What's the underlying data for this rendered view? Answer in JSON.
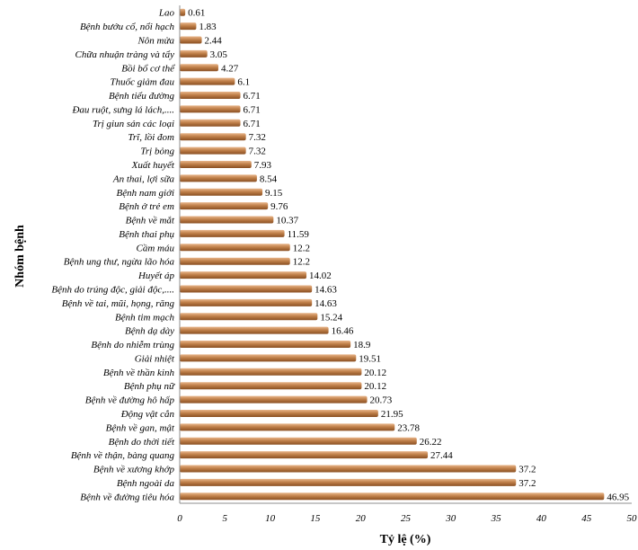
{
  "chart_data": {
    "type": "bar",
    "orientation": "horizontal",
    "xlabel": "Tỷ lệ (%)",
    "ylabel": "Nhóm bệnh",
    "xlim": [
      0,
      50
    ],
    "xticks": [
      "0",
      "5",
      "10",
      "15",
      "20",
      "25",
      "30",
      "35",
      "40",
      "45",
      "50"
    ],
    "grid": false,
    "bar_color": "#c0804a",
    "categories": [
      "Lao",
      "Bệnh bướu cổ, nổi hạch",
      "Nôn mửa",
      "Chữa nhuận tràng và tẩy",
      "Bồi bổ cơ thể",
      "Thuốc giảm đau",
      "Bệnh tiểu đường",
      "Đau ruột, sưng lá lách,....",
      "Trị giun sán các loại",
      "Trĩ, lồi đom",
      "Trị bỏng",
      "Xuất huyết",
      "An thai, lợi sữa",
      "Bệnh nam giới",
      "Bệnh ở trẻ em",
      "Bệnh về mắt",
      "Bệnh thai phụ",
      "Cầm máu",
      "Bệnh ung thư, ngừa lão hóa",
      "Huyết áp",
      "Bệnh do trúng độc, giải độc,....",
      "Bệnh về tai, mũi, họng, răng",
      "Bệnh tim mạch",
      "Bệnh dạ dày",
      "Bệnh do nhiễm trùng",
      "Giải nhiệt",
      "Bệnh về thần kinh",
      "Bệnh phụ nữ",
      "Bệnh về đường hô hấp",
      "Động vật cắn",
      "Bệnh về gan, mật",
      "Bệnh do thời tiết",
      "Bệnh về thận, bàng quang",
      "Bệnh về xương khớp",
      "Bệnh ngoài da",
      "Bệnh về đường tiêu hóa"
    ],
    "values": [
      0.61,
      1.83,
      2.44,
      3.05,
      4.27,
      6.1,
      6.71,
      6.71,
      6.71,
      7.32,
      7.32,
      7.93,
      8.54,
      9.15,
      9.76,
      10.37,
      11.59,
      12.2,
      12.2,
      14.02,
      14.63,
      14.63,
      15.24,
      16.46,
      18.9,
      19.51,
      20.12,
      20.12,
      20.73,
      21.95,
      23.78,
      26.22,
      27.44,
      37.2,
      37.2,
      46.95
    ],
    "data_labels": [
      "0.61",
      "1.83",
      "2.44",
      "3.05",
      "4.27",
      "6.1",
      "6.71",
      "6.71",
      "6.71",
      "7.32",
      "7.32",
      "7.93",
      "8.54",
      "9.15",
      "9.76",
      "10.37",
      "11.59",
      "12.2",
      "12.2",
      "14.02",
      "14.63",
      "14.63",
      "15.24",
      "16.46",
      "18.9",
      "19.51",
      "20.12",
      "20.12",
      "20.73",
      "21.95",
      "23.78",
      "26.22",
      "27.44",
      "37.2",
      "37.2",
      "46.95"
    ]
  }
}
